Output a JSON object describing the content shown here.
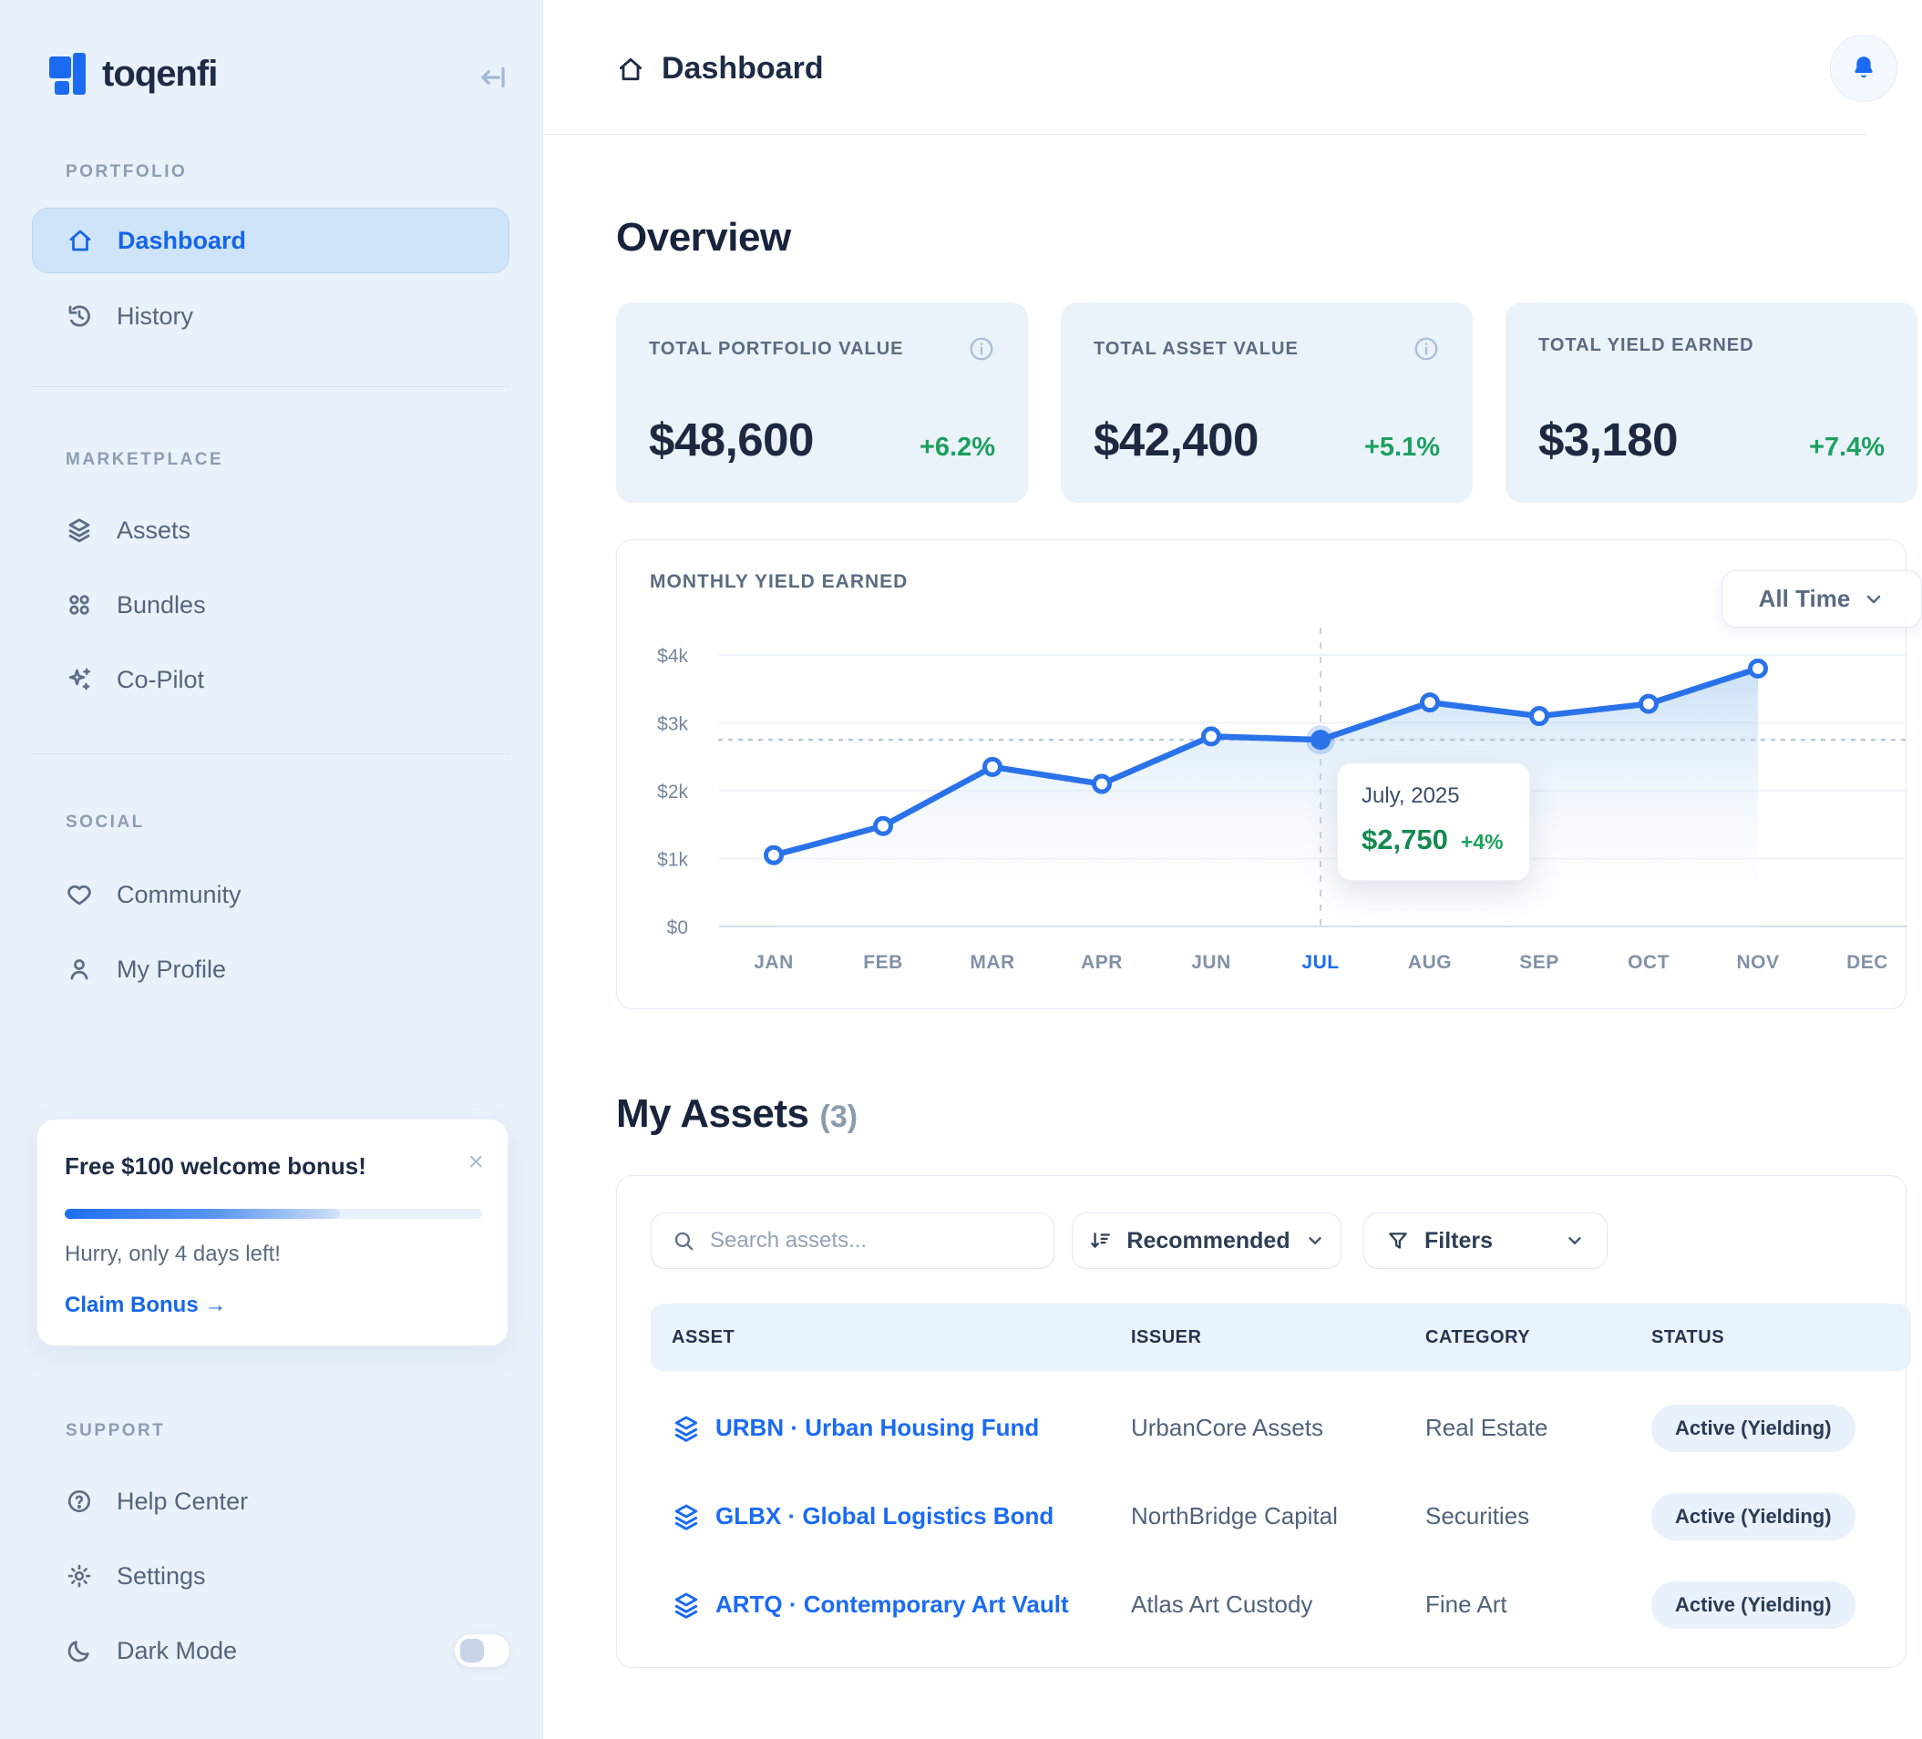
{
  "colors": {
    "accent": "#1b6bf2",
    "positive": "#1da05f",
    "navy": "#1c2940",
    "sidebar_bg": "#e9f1fa",
    "card_bg": "#eaf2fa",
    "line": "#2a72e9"
  },
  "sidebar": {
    "brand": "toqenfi",
    "sections": [
      {
        "label": "PORTFOLIO",
        "items": [
          {
            "label": "Dashboard",
            "active": true
          },
          {
            "label": "History"
          }
        ]
      },
      {
        "label": "MARKETPLACE",
        "items": [
          {
            "label": "Assets"
          },
          {
            "label": "Bundles"
          },
          {
            "label": "Co-Pilot"
          }
        ]
      },
      {
        "label": "SOCIAL",
        "items": [
          {
            "label": "Community"
          },
          {
            "label": "My Profile"
          }
        ]
      },
      {
        "label": "SUPPORT",
        "items": [
          {
            "label": "Help Center"
          },
          {
            "label": "Settings"
          },
          {
            "label": "Dark Mode",
            "toggle": "off"
          }
        ]
      }
    ],
    "bonus_card": {
      "title": "Free $100 welcome bonus!",
      "close": "×",
      "progress_percent": 66,
      "subtitle": "Hurry, only 4 days left!",
      "cta": "Claim Bonus →"
    }
  },
  "header": {
    "title": "Dashboard"
  },
  "overview": {
    "title": "Overview",
    "cards": [
      {
        "label": "TOTAL PORTFOLIO VALUE",
        "value": "$48,600",
        "change": "+6.2%",
        "info_icon": true
      },
      {
        "label": "TOTAL ASSET VALUE",
        "value": "$42,400",
        "change": "+5.1%",
        "info_icon": true
      },
      {
        "label": "TOTAL YIELD EARNED",
        "value": "$3,180",
        "change": "+7.4%",
        "info_icon": false
      }
    ]
  },
  "chart_data": {
    "type": "line",
    "title": "MONTHLY YIELD EARNED",
    "range_selector": "All Time",
    "categories": [
      "JAN",
      "FEB",
      "MAR",
      "APR",
      "JUN",
      "JUL",
      "AUG",
      "SEP",
      "OCT",
      "NOV",
      "DEC"
    ],
    "values": [
      1050,
      1480,
      2350,
      2100,
      2800,
      2750,
      3300,
      3100,
      3280,
      3800,
      null
    ],
    "ylim": [
      0,
      4000
    ],
    "y_ticks": [
      {
        "value": 4000,
        "label": "$4k"
      },
      {
        "value": 3000,
        "label": "$3k"
      },
      {
        "value": 2000,
        "label": "$2k"
      },
      {
        "value": 1000,
        "label": "$1k"
      },
      {
        "value": 0,
        "label": "$0"
      }
    ],
    "grid": true,
    "legend": "none",
    "highlight": {
      "index": 5,
      "month": "JUL",
      "label": "July, 2025",
      "value": "$2,750",
      "value_num": 2750,
      "change": "+4%"
    }
  },
  "assets": {
    "title": "My Assets",
    "count": "(3)",
    "search_placeholder": "Search assets...",
    "sort_label": "Recommended",
    "filters_label": "Filters",
    "table": {
      "columns": [
        "ASSET",
        "ISSUER",
        "CATEGORY",
        "STATUS"
      ],
      "rows": [
        {
          "asset": "URBN · Urban Housing Fund",
          "issuer": "UrbanCore Assets",
          "category": "Real Estate",
          "status": "Active (Yielding)"
        },
        {
          "asset": "GLBX · Global Logistics Bond",
          "issuer": "NorthBridge Capital",
          "category": "Securities",
          "status": "Active (Yielding)"
        },
        {
          "asset": "ARTQ · Contemporary Art Vault",
          "issuer": "Atlas Art Custody",
          "category": "Fine Art",
          "status": "Active (Yielding)"
        }
      ]
    }
  }
}
